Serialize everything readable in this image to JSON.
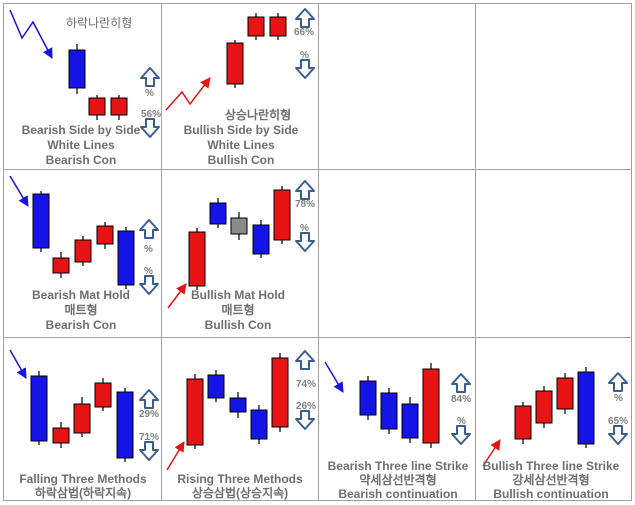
{
  "colors": {
    "bear": "#1414e6",
    "bull": "#e61414",
    "grey": "#8a8a8a",
    "text": "#6e6e6e",
    "pct": "#808080",
    "arrow_stroke": "#3a5f8f",
    "grid": "#a0a0a0"
  },
  "cells": [
    {
      "id": "bearish-side-by-side",
      "title_lines": [
        "Bearish Side by Side",
        "White Lines",
        "Bearish Con"
      ],
      "top_label": "하락나란히형",
      "pcts": {
        "top": "%",
        "bottom": "56%"
      }
    },
    {
      "id": "bullish-side-by-side",
      "title_lines": [
        "상승나란히형",
        "Bullish Side by Side",
        "White Lines",
        "Bullish Con"
      ],
      "pcts": {
        "top": "66%",
        "bottom": "%"
      }
    },
    {
      "id": "bearish-mat-hold",
      "title_lines": [
        "Bearish Mat Hold",
        "매트형",
        "Bearish Con"
      ],
      "pcts": {
        "top": "%",
        "bottom": "%"
      }
    },
    {
      "id": "bullish-mat-hold",
      "title_lines": [
        "Bullish Mat Hold",
        "매트형",
        "Bullish Con"
      ],
      "pcts": {
        "top": "78%",
        "bottom": "%"
      }
    },
    {
      "id": "falling-three-methods",
      "title_lines": [
        "Falling Three Methods",
        "하락삼법(하락지속)"
      ],
      "pcts": {
        "top": "29%",
        "bottom": "71%"
      }
    },
    {
      "id": "rising-three-methods",
      "title_lines": [
        "Rising Three Methods",
        "상승삼법(상승지속)"
      ],
      "pcts": {
        "top": "74%",
        "bottom": "26%"
      }
    },
    {
      "id": "bearish-three-line-strike",
      "title_lines": [
        "Bearish Three line Strike",
        "약세삼선반격형",
        "Bearish continuation"
      ],
      "pcts": {
        "top": "84%",
        "bottom": "%"
      }
    },
    {
      "id": "bullish-three-line-strike",
      "title_lines": [
        "Bullish Three line Strike",
        "강세삼선반격형",
        "Bullish continuation"
      ],
      "pcts": {
        "top": "%",
        "bottom": "65%"
      }
    }
  ]
}
